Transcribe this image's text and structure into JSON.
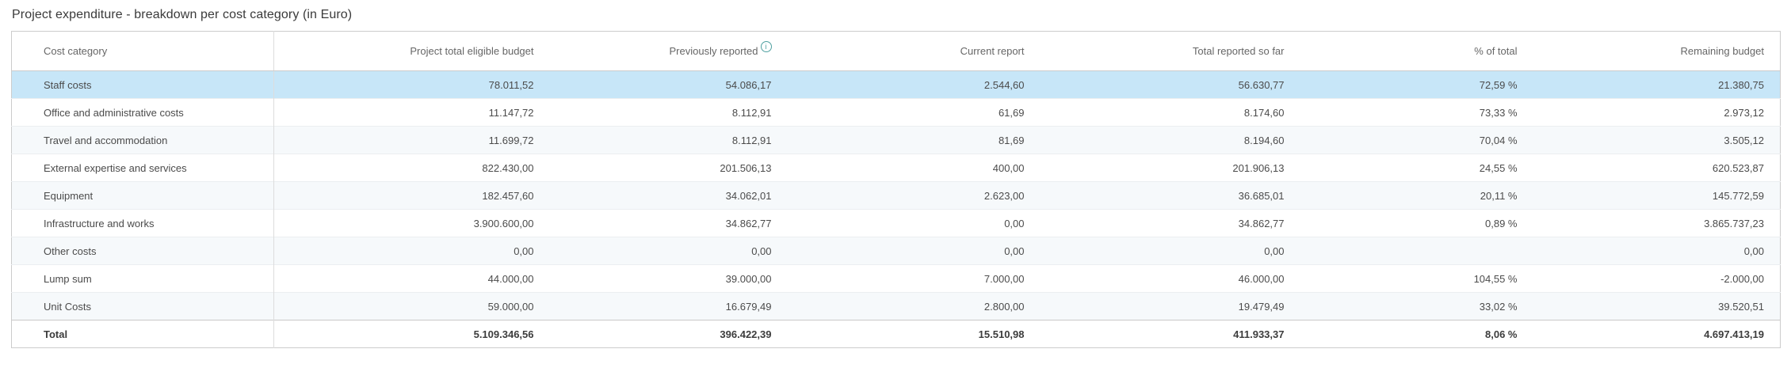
{
  "title": "Project expenditure - breakdown per cost category (in Euro)",
  "table": {
    "columns": [
      "Cost category",
      "Project total eligible budget",
      "Previously reported",
      "Current report",
      "Total reported so far",
      "% of total",
      "Remaining budget"
    ],
    "info_icon_glyph": "i",
    "rows": [
      {
        "category": "Staff costs",
        "highlighted": true,
        "values": [
          "78.011,52",
          "54.086,17",
          "2.544,60",
          "56.630,77",
          "72,59 %",
          "21.380,75"
        ]
      },
      {
        "category": "Office and administrative costs",
        "highlighted": false,
        "values": [
          "11.147,72",
          "8.112,91",
          "61,69",
          "8.174,60",
          "73,33 %",
          "2.973,12"
        ]
      },
      {
        "category": "Travel and accommodation",
        "highlighted": false,
        "values": [
          "11.699,72",
          "8.112,91",
          "81,69",
          "8.194,60",
          "70,04 %",
          "3.505,12"
        ]
      },
      {
        "category": "External expertise and services",
        "highlighted": false,
        "values": [
          "822.430,00",
          "201.506,13",
          "400,00",
          "201.906,13",
          "24,55 %",
          "620.523,87"
        ]
      },
      {
        "category": "Equipment",
        "highlighted": false,
        "values": [
          "182.457,60",
          "34.062,01",
          "2.623,00",
          "36.685,01",
          "20,11 %",
          "145.772,59"
        ]
      },
      {
        "category": "Infrastructure and works",
        "highlighted": false,
        "values": [
          "3.900.600,00",
          "34.862,77",
          "0,00",
          "34.862,77",
          "0,89 %",
          "3.865.737,23"
        ]
      },
      {
        "category": "Other costs",
        "highlighted": false,
        "values": [
          "0,00",
          "0,00",
          "0,00",
          "0,00",
          "",
          "0,00"
        ]
      },
      {
        "category": "Lump sum",
        "highlighted": false,
        "values": [
          "44.000,00",
          "39.000,00",
          "7.000,00",
          "46.000,00",
          "104,55 %",
          "-2.000,00"
        ]
      },
      {
        "category": "Unit Costs",
        "highlighted": false,
        "values": [
          "59.000,00",
          "16.679,49",
          "2.800,00",
          "19.479,49",
          "33,02 %",
          "39.520,51"
        ]
      }
    ],
    "total_row": {
      "category": "Total",
      "values": [
        "5.109.346,56",
        "396.422,39",
        "15.510,98",
        "411.933,37",
        "8,06 %",
        "4.697.413,19"
      ]
    }
  },
  "colors": {
    "selected_row_bg": "#c7e6f8",
    "alt_row_bg": "#f6f9fb",
    "table_border": "#cccccc",
    "row_divider": "#ebeef1",
    "header_text": "#666666",
    "cell_text": "#4b4b4b",
    "info_icon": "#4fa0a0"
  }
}
